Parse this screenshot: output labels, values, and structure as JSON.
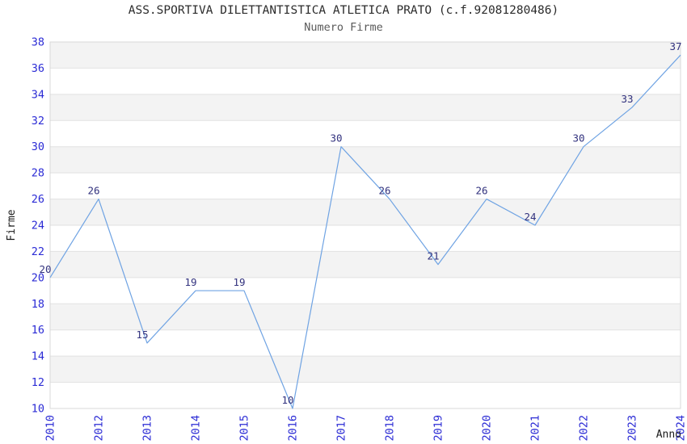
{
  "chart_data": {
    "type": "line",
    "title": "ASS.SPORTIVA DILETTANTISTICA ATLETICA PRATO (c.f.92081280486)",
    "subtitle": "Numero Firme",
    "xlabel": "Anno",
    "ylabel": "Firme",
    "categories": [
      "2010",
      "2012",
      "2013",
      "2014",
      "2015",
      "2016",
      "2017",
      "2018",
      "2019",
      "2020",
      "2021",
      "2022",
      "2023",
      "2024"
    ],
    "values": [
      20,
      26,
      15,
      19,
      19,
      10,
      30,
      26,
      21,
      26,
      24,
      30,
      33,
      37
    ],
    "ylim": [
      10,
      38
    ],
    "ytick_step": 2,
    "grid": true,
    "legend": false,
    "band_fill": "alternating gray/white horizontal bands",
    "colors": {
      "line": "#6fa3e3",
      "tick_label": "#2b2bd5",
      "data_label": "#32327e",
      "band": "#f3f3f3",
      "gridline": "#e2e2e2",
      "border": "#d8d8d8",
      "title": "#2b2b2b",
      "subtitle": "#5a5a5a",
      "axis_title": "#1a1a1a"
    }
  }
}
